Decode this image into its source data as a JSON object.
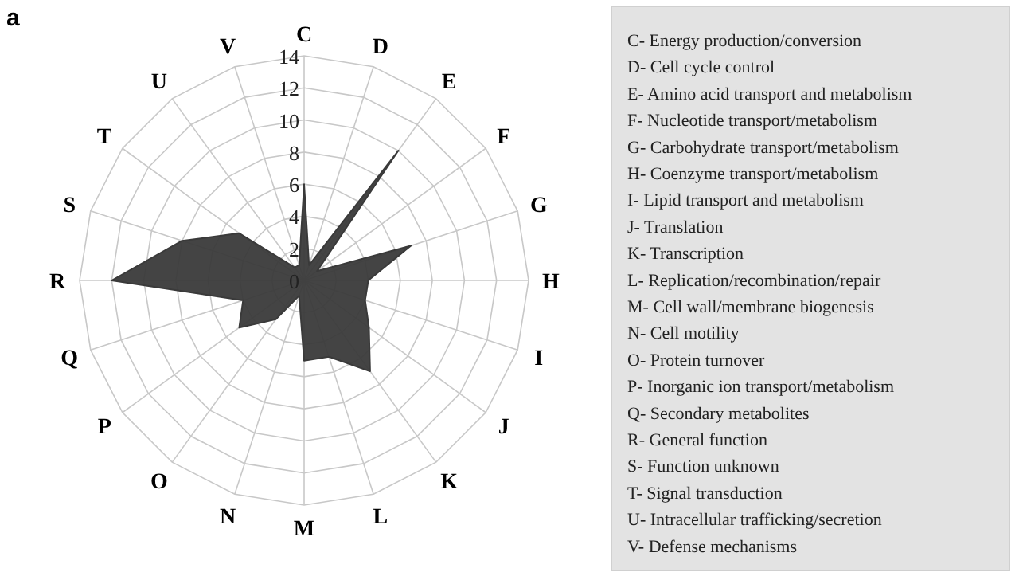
{
  "chart_data": {
    "type": "radar",
    "title": "a",
    "categories": [
      "C",
      "D",
      "E",
      "F",
      "G",
      "H",
      "I",
      "J",
      "K",
      "L",
      "M",
      "N",
      "O",
      "P",
      "Q",
      "R",
      "S",
      "T",
      "U",
      "V"
    ],
    "series": [
      {
        "color": "#3a3a3a",
        "values": [
          6,
          1,
          10,
          1,
          7,
          4,
          4,
          5,
          7,
          5,
          5,
          1,
          3,
          5,
          4,
          12,
          8,
          5,
          1,
          1
        ]
      }
    ],
    "ylim": [
      0,
      14
    ],
    "yticks": [
      0,
      2,
      4,
      6,
      8,
      10,
      12,
      14
    ],
    "grid": true,
    "annotations": [
      "C- Energy production/conversion",
      "D- Cell cycle control",
      "E- Amino acid transport and metabolism",
      "F- Nucleotide transport/metabolism",
      "G- Carbohydrate transport/metabolism",
      "H- Coenzyme transport/metabolism",
      "I- Lipid transport and metabolism",
      "J- Translation",
      "K- Transcription",
      "L- Replication/recombination/repair",
      "M- Cell wall/membrane biogenesis",
      "N- Cell motility",
      "O- Protein turnover",
      "P- Inorganic ion transport/metabolism",
      "Q- Secondary metabolites",
      "R- General function",
      "S- Function unknown",
      "T- Signal transduction",
      "U- Intracellular trafficking/secretion",
      "V- Defense mechanisms"
    ]
  }
}
